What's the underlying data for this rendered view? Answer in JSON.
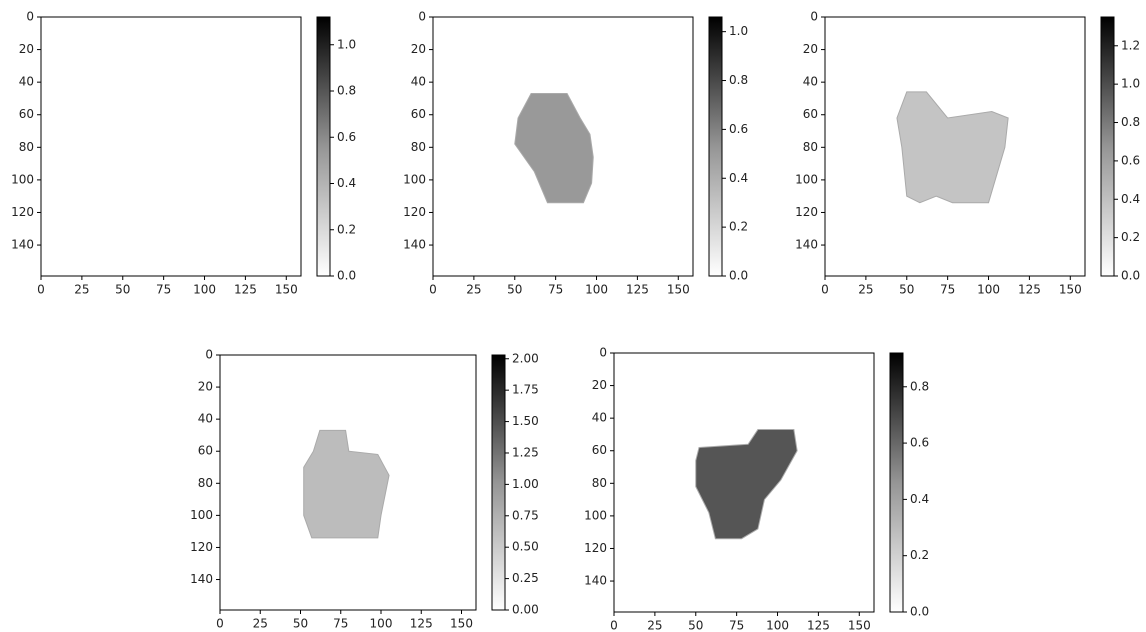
{
  "chart_data": [
    {
      "type": "image",
      "xlim": [
        0,
        159
      ],
      "ylim": [
        159,
        0
      ],
      "xticks": [
        0,
        25,
        50,
        75,
        100,
        125,
        150
      ],
      "yticks": [
        0,
        20,
        40,
        60,
        80,
        100,
        120,
        140
      ],
      "colorbar": {
        "cmap": "Greys",
        "clim": [
          0,
          1.12
        ],
        "ticks": [
          {
            "value": 0,
            "label": "0.0"
          },
          {
            "value": 0.2,
            "label": "0.2"
          },
          {
            "value": 0.4,
            "label": "0.4"
          },
          {
            "value": 0.6,
            "label": "0.6"
          },
          {
            "value": 0.8,
            "label": "0.8"
          },
          {
            "value": 1,
            "label": "1.0"
          }
        ]
      }
    },
    {
      "type": "image",
      "xlim": [
        0,
        159
      ],
      "ylim": [
        159,
        0
      ],
      "xticks": [
        0,
        25,
        50,
        75,
        100,
        125,
        150
      ],
      "yticks": [
        0,
        20,
        40,
        60,
        80,
        100,
        120,
        140
      ],
      "colorbar": {
        "cmap": "Greys",
        "clim": [
          0,
          1.06
        ],
        "ticks": [
          {
            "value": 0,
            "label": "0.0"
          },
          {
            "value": 0.2,
            "label": "0.2"
          },
          {
            "value": 0.4,
            "label": "0.4"
          },
          {
            "value": 0.6,
            "label": "0.6"
          },
          {
            "value": 0.8,
            "label": "0.8"
          },
          {
            "value": 1,
            "label": "1.0"
          }
        ]
      }
    },
    {
      "type": "image",
      "xlim": [
        0,
        159
      ],
      "ylim": [
        159,
        0
      ],
      "xticks": [
        0,
        25,
        50,
        75,
        100,
        125,
        150
      ],
      "yticks": [
        0,
        20,
        40,
        60,
        80,
        100,
        120,
        140
      ],
      "colorbar": {
        "cmap": "Greys",
        "clim": [
          0,
          1.35
        ],
        "ticks": [
          {
            "value": 0,
            "label": "0.0"
          },
          {
            "value": 0.2,
            "label": "0.2"
          },
          {
            "value": 0.4,
            "label": "0.4"
          },
          {
            "value": 0.6,
            "label": "0.6"
          },
          {
            "value": 0.8,
            "label": "0.8"
          },
          {
            "value": 1,
            "label": "1.0"
          },
          {
            "value": 1.2,
            "label": "1.2"
          }
        ]
      }
    },
    {
      "type": "image",
      "xlim": [
        0,
        159
      ],
      "ylim": [
        159,
        0
      ],
      "xticks": [
        0,
        25,
        50,
        75,
        100,
        125,
        150
      ],
      "yticks": [
        0,
        20,
        40,
        60,
        80,
        100,
        120,
        140
      ],
      "colorbar": {
        "cmap": "Greys",
        "clim": [
          0,
          2.03
        ],
        "ticks": [
          {
            "value": 0,
            "label": "0.00"
          },
          {
            "value": 0.25,
            "label": "0.25"
          },
          {
            "value": 0.5,
            "label": "0.50"
          },
          {
            "value": 0.75,
            "label": "0.75"
          },
          {
            "value": 1,
            "label": "1.00"
          },
          {
            "value": 1.25,
            "label": "1.25"
          },
          {
            "value": 1.5,
            "label": "1.50"
          },
          {
            "value": 1.75,
            "label": "1.75"
          },
          {
            "value": 2,
            "label": "2.00"
          }
        ]
      }
    },
    {
      "type": "image",
      "xlim": [
        0,
        159
      ],
      "ylim": [
        159,
        0
      ],
      "xticks": [
        0,
        25,
        50,
        75,
        100,
        125,
        150
      ],
      "yticks": [
        0,
        20,
        40,
        60,
        80,
        100,
        120,
        140
      ],
      "colorbar": {
        "cmap": "Greys",
        "clim": [
          0,
          0.92
        ],
        "ticks": [
          {
            "value": 0,
            "label": "0.0"
          },
          {
            "value": 0.2,
            "label": "0.2"
          },
          {
            "value": 0.4,
            "label": "0.4"
          },
          {
            "value": 0.6,
            "label": "0.6"
          },
          {
            "value": 0.8,
            "label": "0.8"
          }
        ]
      }
    }
  ]
}
